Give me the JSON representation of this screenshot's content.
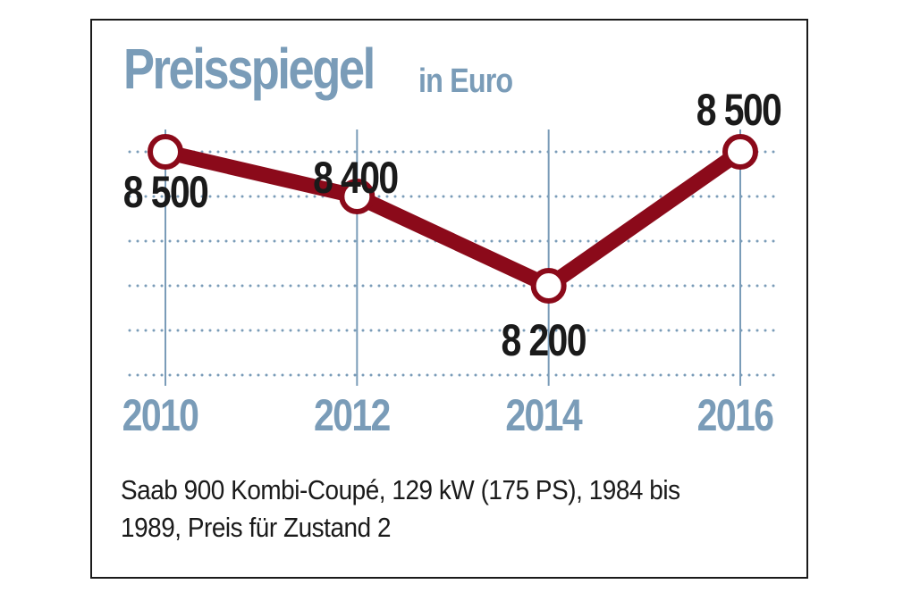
{
  "title": "Preisspiegel",
  "unit": "in Euro",
  "caption_line1": "Saab 900 Kombi-Coupé, 129 kW (175 PS), 1984 bis",
  "caption_line2": "1989, Preis für Zustand 2",
  "colors": {
    "line": "#8b0a1a",
    "axis": "#7a9cb8",
    "text": "#1a1a1a"
  },
  "chart_data": {
    "type": "line",
    "title": "Preisspiegel",
    "subtitle": "in Euro",
    "categories": [
      "2010",
      "2012",
      "2014",
      "2016"
    ],
    "values": [
      8500,
      8400,
      8200,
      8500
    ],
    "data_labels": [
      "8 500",
      "8 400",
      "8 200",
      "8 500"
    ],
    "ylim": [
      8000,
      8500
    ],
    "grid": true
  }
}
